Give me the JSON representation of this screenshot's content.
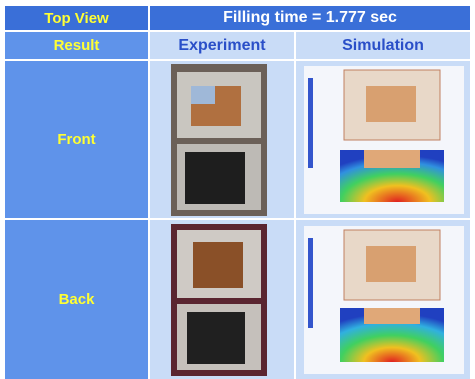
{
  "table": {
    "header": {
      "corner": "Top View",
      "title": "Filling time = 1.777 sec"
    },
    "columns": [
      "Result",
      "Experiment",
      "Simulation"
    ],
    "rows": [
      {
        "label": "Front"
      },
      {
        "label": "Back"
      }
    ]
  }
}
